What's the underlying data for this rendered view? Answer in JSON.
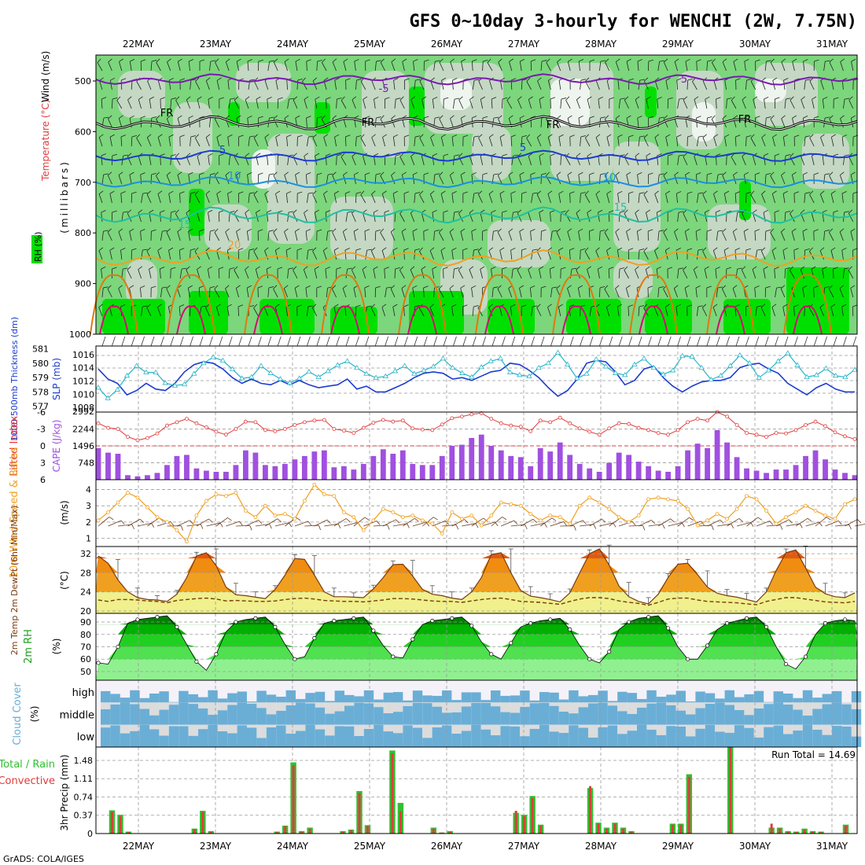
{
  "title": "GFS 0~10day 3-hourly for WENCHI (2W, 7.75N)",
  "credit": "GrADS: COLA/IGES",
  "dates": [
    "22MAY",
    "23MAY",
    "24MAY",
    "25MAY",
    "26MAY",
    "27MAY",
    "28MAY",
    "29MAY",
    "30MAY",
    "31MAY"
  ],
  "colors": {
    "rh_light": "#c8d8c8",
    "rh_mid": "#7cd67c",
    "rh_dark": "#00e000",
    "purple": "#a050e0",
    "cyan": "#28b4c8",
    "blue": "#1c3cd0",
    "red": "#e03c3c",
    "orange": "#f0a020",
    "cloud": "#6aaed6"
  },
  "panels": {
    "upper": {
      "ylabels": [
        "Wind (m/s)",
        "Temperature (°C)",
        "RH (%)",
        "(millibars)"
      ],
      "ticks": [
        "500",
        "600",
        "700",
        "800",
        "900",
        "1000"
      ],
      "contour_labels": [
        "-5",
        "5",
        "FR",
        "FR",
        "FR",
        "FR",
        "5",
        "5",
        "10",
        "10",
        "15",
        "20",
        "15"
      ]
    },
    "thickness": {
      "ylabel_left": "1000-500mb Thickness (dm)",
      "ylabel_right": "SLP (mb)",
      "left_ticks": [
        "581",
        "580",
        "579",
        "578",
        "577"
      ],
      "right_ticks": [
        "1016",
        "1014",
        "1012",
        "1010",
        "1008"
      ],
      "right_top": "2992"
    },
    "cape": {
      "ylabel_left": "Lifted Index",
      "ylabel_right": "CAPE (J/kg)",
      "left_ticks": [
        "-6",
        "-3",
        "0",
        "3",
        "6"
      ],
      "right_ticks": [
        "2244",
        "1496",
        "748"
      ]
    },
    "wind10": {
      "ylabel": "10m Wind Speed & Barbs",
      "unit": "(m/s)",
      "ticks": [
        "4",
        "3",
        "2",
        "1"
      ]
    },
    "temp2m": {
      "ylabel": "2m Temp 2m DewPt (6hr Min/Max)",
      "unit": "(°C)",
      "ticks": [
        "32",
        "28",
        "24",
        "20"
      ]
    },
    "rh2m": {
      "ylabel": "2m RH",
      "unit": "(%)",
      "ticks": [
        "90",
        "80",
        "70",
        "60",
        "50"
      ]
    },
    "cloud": {
      "ylabel": "Cloud Cover",
      "unit": "(%)",
      "levels": [
        "high",
        "middle",
        "low"
      ]
    },
    "precip": {
      "ylabel_left": "Total / Rain",
      "ylabel_left2": "Convective",
      "ylabel": "3hr Precip (mm)",
      "ticks": [
        "1.48",
        "1.11",
        "0.74",
        "0.37",
        "0"
      ],
      "run_total": "Run Total = 14.69"
    }
  },
  "chart_data": [
    {
      "type": "line",
      "name": "thickness",
      "series": [
        {
          "name": "1000-500mb Thickness",
          "values": [
            579.6,
            578.9,
            578.6,
            577.8,
            578.1,
            578.6,
            578.2,
            578.1,
            578.6,
            579.4,
            579.9,
            580.1,
            580.0,
            579.6,
            579.0,
            578.6,
            578.9,
            578.6,
            578.5,
            578.8,
            578.5,
            578.8,
            578.5,
            578.3,
            578.4,
            578.5,
            578.9,
            578.2,
            578.4,
            578.0,
            578.0,
            578.3,
            578.6,
            579.0,
            579.3,
            579.4,
            579.3,
            578.9,
            579.0,
            578.8,
            579.1,
            579.4,
            579.5,
            580.0,
            579.9,
            579.5,
            579.0,
            578.3,
            577.7,
            578.1,
            578.9,
            580.0,
            580.2,
            580.1,
            579.4,
            578.5,
            578.8,
            579.6,
            579.8,
            579.0,
            578.4,
            578.0,
            578.4,
            578.7,
            578.8,
            578.8,
            579.0,
            579.7,
            579.9,
            580.0,
            579.6,
            579.3,
            578.6,
            578.2,
            577.8,
            578.3,
            578.6,
            578.2,
            578.0,
            578.0
          ]
        }
      ]
    },
    {
      "type": "line",
      "name": "slp",
      "series": [
        {
          "name": "SLP",
          "values": [
            1011.0,
            1009.4,
            1010.7,
            1012.8,
            1014.3,
            1013.3,
            1013.3,
            1011.7,
            1011.3,
            1011.5,
            1013.1,
            1014.7,
            1015.6,
            1015.1,
            1013.8,
            1012.4,
            1012.6,
            1014.3,
            1013.2,
            1012.3,
            1011.7,
            1012.4,
            1013.4,
            1012.6,
            1013.5,
            1014.4,
            1015.0,
            1014.0,
            1013.1,
            1012.5,
            1012.7,
            1013.5,
            1014.3,
            1013.1,
            1013.6,
            1014.2,
            1015.4,
            1014.0,
            1013.2,
            1012.6,
            1014.1,
            1015.0,
            1015.4,
            1013.3,
            1012.9,
            1012.7,
            1014.0,
            1014.7,
            1016.3,
            1014.5,
            1012.4,
            1013.1,
            1015.3,
            1014.2,
            1013.2,
            1012.9,
            1014.5,
            1015.4,
            1014.0,
            1013.0,
            1013.6,
            1015.8,
            1015.7,
            1014.0,
            1012.2,
            1012.8,
            1014.3,
            1015.9,
            1014.7,
            1012.5,
            1013.6,
            1015.0,
            1016.2,
            1014.4,
            1012.6,
            1012.9,
            1013.9,
            1012.8,
            1012.6,
            1013.7
          ]
        }
      ]
    },
    {
      "type": "bar",
      "name": "cape",
      "series": [
        {
          "name": "CAPE",
          "values": [
            1400,
            1200,
            1150,
            200,
            150,
            200,
            300,
            650,
            1050,
            1100,
            500,
            400,
            350,
            350,
            650,
            1300,
            1200,
            650,
            600,
            700,
            900,
            1050,
            1250,
            1300,
            550,
            600,
            450,
            700,
            1050,
            1350,
            1150,
            1300,
            700,
            650,
            650,
            1050,
            1500,
            1550,
            1850,
            2000,
            1500,
            1300,
            1050,
            1000,
            600,
            1400,
            1250,
            1650,
            1100,
            700,
            500,
            350,
            750,
            1200,
            1100,
            800,
            600,
            400,
            350,
            600,
            1300,
            1600,
            1400,
            2200,
            1650,
            1000,
            500,
            400,
            300,
            450,
            450,
            650,
            1050,
            1300,
            900,
            450,
            300,
            200
          ]
        }
      ]
    },
    {
      "type": "line",
      "name": "lifted_index",
      "series": [
        {
          "name": "Lifted Index",
          "values": [
            -4.0,
            -3.2,
            -3.0,
            -1.6,
            -1.0,
            -1.4,
            -2.2,
            -3.6,
            -4.2,
            -4.8,
            -4.0,
            -3.3,
            -2.5,
            -2.0,
            -3.0,
            -4.3,
            -4.2,
            -2.8,
            -2.6,
            -3.0,
            -3.7,
            -4.2,
            -4.5,
            -4.6,
            -3.0,
            -2.7,
            -2.3,
            -3.2,
            -4.1,
            -4.6,
            -4.3,
            -4.5,
            -3.1,
            -2.9,
            -2.8,
            -3.8,
            -4.9,
            -5.2,
            -5.6,
            -5.8,
            -4.8,
            -4.0,
            -3.6,
            -3.4,
            -2.6,
            -4.5,
            -4.2,
            -5.0,
            -4.0,
            -3.1,
            -2.5,
            -2.0,
            -3.1,
            -4.0,
            -3.9,
            -3.2,
            -2.8,
            -2.3,
            -2.0,
            -2.8,
            -4.2,
            -4.8,
            -4.5,
            -6.0,
            -5.2,
            -3.7,
            -2.3,
            -2.0,
            -1.6,
            -2.3,
            -2.2,
            -2.8,
            -3.7,
            -4.3,
            -3.5,
            -2.4,
            -1.7,
            -1.2
          ]
        }
      ]
    },
    {
      "type": "line",
      "name": "wind10m",
      "series": [
        {
          "name": "10m Wind Speed",
          "values": [
            2.1,
            2.6,
            3.2,
            3.8,
            3.5,
            2.9,
            2.3,
            2.0,
            1.5,
            0.8,
            2.4,
            3.3,
            3.7,
            3.6,
            3.8,
            2.7,
            2.3,
            3.0,
            2.4,
            2.5,
            2.2,
            3.3,
            4.3,
            3.7,
            3.6,
            2.6,
            2.3,
            1.5,
            2.1,
            2.8,
            2.6,
            2.3,
            2.4,
            2.1,
            1.9,
            1.3,
            2.6,
            2.2,
            2.4,
            1.8,
            2.4,
            3.2,
            3.1,
            3.0,
            2.5,
            2.1,
            2.4,
            2.3,
            1.9,
            3.0,
            3.5,
            3.2,
            2.8,
            2.3,
            2.0,
            2.4,
            3.4,
            3.5,
            3.4,
            3.3,
            2.8,
            1.8,
            2.1,
            2.5,
            2.2,
            2.8,
            3.6,
            3.4,
            2.7,
            1.9,
            2.3,
            2.6,
            3.0,
            2.7,
            2.4,
            2.2,
            3.1,
            3.4
          ]
        }
      ]
    },
    {
      "type": "area",
      "name": "temp2m",
      "series": [
        {
          "name": "2m Temp",
          "values": [
            31.5,
            30.0,
            26.5,
            24.0,
            22.8,
            22.4,
            22.3,
            22.0,
            23.5,
            27.0,
            31.5,
            32.2,
            29.5,
            25.0,
            23.4,
            23.2,
            22.9,
            22.6,
            24.5,
            27.5,
            31.0,
            30.8,
            27.5,
            24.0,
            23.0,
            23.0,
            22.9,
            22.8,
            24.6,
            27.0,
            29.7,
            29.8,
            27.3,
            24.5,
            23.5,
            23.2,
            22.7,
            22.4,
            24.0,
            27.0,
            31.8,
            32.2,
            28.0,
            24.3,
            23.1,
            22.8,
            22.4,
            21.9,
            23.8,
            28.0,
            32.0,
            33.0,
            29.6,
            25.2,
            23.0,
            22.0,
            21.5,
            23.5,
            27.0,
            29.8,
            30.0,
            27.6,
            25.0,
            23.7,
            23.2,
            22.9,
            22.4,
            21.9,
            24.0,
            28.5,
            32.2,
            32.8,
            29.0,
            25.0,
            23.6,
            23.0,
            22.8,
            23.8
          ]
        },
        {
          "name": "2m DewPt",
          "values": [
            22.3,
            22.0,
            22.4,
            22.4,
            22.3,
            22.1,
            22.0,
            21.7,
            22.2,
            22.4,
            22.6,
            22.7,
            22.5,
            22.1,
            22.2,
            22.1,
            22.0,
            22.0,
            22.1,
            22.4,
            22.6,
            22.7,
            22.5,
            22.2,
            22.1,
            22.0,
            22.0,
            21.9,
            22.1,
            22.3,
            22.6,
            22.6,
            22.5,
            22.3,
            22.1,
            22.0,
            22.0,
            21.8,
            22.1,
            22.4,
            22.6,
            22.7,
            22.4,
            22.0,
            21.9,
            21.8,
            21.6,
            21.4,
            22.0,
            22.5,
            22.8,
            22.8,
            22.6,
            22.1,
            21.8,
            21.6,
            21.2,
            21.8,
            22.5,
            22.7,
            22.7,
            22.3,
            22.0,
            21.9,
            21.8,
            21.7,
            21.5,
            21.3,
            22.0,
            22.4,
            22.8,
            22.8,
            22.5,
            22.2,
            21.9,
            21.8,
            21.7,
            22.0
          ]
        }
      ]
    },
    {
      "type": "area",
      "name": "rh2m",
      "series": [
        {
          "name": "2m RH",
          "values": [
            57,
            56,
            70,
            89,
            92,
            93,
            94,
            95,
            86,
            72,
            58,
            51,
            64,
            82,
            90,
            92,
            93,
            94,
            86,
            72,
            60,
            62,
            77,
            89,
            91,
            92,
            93,
            94,
            83,
            71,
            62,
            61,
            76,
            88,
            91,
            92,
            93,
            94,
            87,
            74,
            64,
            60,
            73,
            86,
            89,
            91,
            92,
            93,
            84,
            71,
            60,
            57,
            66,
            84,
            90,
            93,
            94,
            95,
            85,
            70,
            60,
            60,
            71,
            84,
            89,
            91,
            93,
            94,
            86,
            70,
            56,
            52,
            62,
            80,
            89,
            91,
            92,
            91
          ]
        }
      ]
    },
    {
      "type": "bar",
      "name": "precip",
      "series": [
        {
          "name": "Total",
          "values": [
            0,
            0.47,
            0.38,
            0.04,
            0,
            0,
            0,
            0,
            0,
            0,
            0,
            0.1,
            0.46,
            0.05,
            0,
            0,
            0,
            0,
            0,
            0,
            0,
            0.04,
            0.16,
            1.44,
            0.05,
            0.12,
            0,
            0,
            0,
            0.05,
            0.08,
            0.86,
            0.17,
            0,
            0,
            1.68,
            0.62,
            0,
            0,
            0,
            0.12,
            0.02,
            0.05,
            0,
            0,
            0,
            0,
            0,
            0,
            0,
            0.42,
            0.38,
            0.76,
            0.18,
            0,
            0,
            0,
            0,
            0,
            0.92,
            0.22,
            0.12,
            0.22,
            0.12,
            0.05,
            0,
            0,
            0,
            0,
            0.2,
            0.2,
            1.2,
            0,
            0,
            0,
            0,
            1.8,
            0,
            0,
            0,
            0,
            0.12,
            0.12,
            0.05,
            0.04,
            0.1,
            0.05,
            0.04,
            0,
            0,
            0.18
          ]
        },
        {
          "name": "Convective",
          "values": [
            0,
            0.44,
            0.35,
            0.03,
            0,
            0,
            0,
            0,
            0,
            0,
            0,
            0.09,
            0.44,
            0.04,
            0,
            0,
            0,
            0,
            0,
            0,
            0,
            0.03,
            0.15,
            1.38,
            0.04,
            0.1,
            0,
            0,
            0,
            0.04,
            0.07,
            0.82,
            0.15,
            0,
            0,
            1.62,
            0.45,
            0,
            0,
            0,
            0.1,
            0.02,
            0.04,
            0,
            0,
            0,
            0,
            0,
            0,
            0,
            0.46,
            0.35,
            0.72,
            0.16,
            0,
            0,
            0,
            0,
            0,
            0.96,
            0.2,
            0.1,
            0.2,
            0.1,
            0.04,
            0,
            0,
            0,
            0,
            0.18,
            0.18,
            1.15,
            0,
            0,
            0,
            0,
            1.75,
            0,
            0,
            0,
            0,
            0.2,
            0.1,
            0.04,
            0.03,
            0.08,
            0.04,
            0.03,
            0,
            0,
            0.16
          ]
        }
      ]
    }
  ]
}
